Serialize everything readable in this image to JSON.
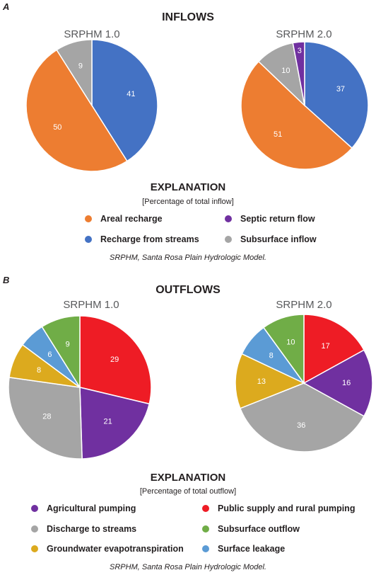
{
  "colors": {
    "orange": "#ed7d31",
    "blue": "#4472c4",
    "purple": "#7030a0",
    "gray": "#a5a5a5",
    "red": "#ee1c25",
    "green": "#70ad47",
    "gold": "#dcaa1e",
    "lightblue": "#5b9bd5"
  },
  "panel_a": {
    "letter": "A",
    "title": "INFLOWS",
    "explanation_title": "EXPLANATION",
    "explanation_subtitle": "[Percentage of total inflow]",
    "legend": [
      {
        "label": "Areal recharge",
        "color": "#ed7d31"
      },
      {
        "label": "Septic return flow",
        "color": "#7030a0"
      },
      {
        "label": "Recharge from streams",
        "color": "#4472c4"
      },
      {
        "label": "Subsurface inflow",
        "color": "#a5a5a5"
      }
    ],
    "note": "SRPHM, Santa Rosa Plain Hydrologic Model."
  },
  "panel_b": {
    "letter": "B",
    "title": "OUTFLOWS",
    "explanation_title": "EXPLANATION",
    "explanation_subtitle": "[Percentage of total outflow]",
    "legend": [
      {
        "label": "Agricultural pumping",
        "color": "#7030a0"
      },
      {
        "label": "Public supply and rural pumping",
        "color": "#ee1c25"
      },
      {
        "label": "Discharge to streams",
        "color": "#a5a5a5"
      },
      {
        "label": "Subsurface outflow",
        "color": "#70ad47"
      },
      {
        "label": "Groundwater evapotranspiration",
        "color": "#dcaa1e"
      },
      {
        "label": "Surface leakage",
        "color": "#5b9bd5"
      }
    ],
    "note": "SRPHM, Santa Rosa Plain Hydrologic Model."
  },
  "chart_data": [
    {
      "type": "pie",
      "title": "SRPHM 1.0",
      "group": "INFLOWS",
      "slices": [
        {
          "label": "Recharge from streams",
          "value": 41,
          "color": "#4472c4"
        },
        {
          "label": "Areal recharge",
          "value": 50,
          "color": "#ed7d31"
        },
        {
          "label": "Subsurface inflow",
          "value": 9,
          "color": "#a5a5a5"
        }
      ]
    },
    {
      "type": "pie",
      "title": "SRPHM 2.0",
      "group": "INFLOWS",
      "slices": [
        {
          "label": "Recharge from streams",
          "value": 37,
          "color": "#4472c4"
        },
        {
          "label": "Areal recharge",
          "value": 51,
          "color": "#ed7d31"
        },
        {
          "label": "Subsurface inflow",
          "value": 10,
          "color": "#a5a5a5"
        },
        {
          "label": "Septic return flow",
          "value": 3,
          "color": "#7030a0"
        }
      ]
    },
    {
      "type": "pie",
      "title": "SRPHM 1.0",
      "group": "OUTFLOWS",
      "slices": [
        {
          "label": "Public supply and rural pumping",
          "value": 29,
          "color": "#ee1c25"
        },
        {
          "label": "Agricultural pumping",
          "value": 21,
          "color": "#7030a0"
        },
        {
          "label": "Discharge to streams",
          "value": 28,
          "color": "#a5a5a5"
        },
        {
          "label": "Groundwater evapotranspiration",
          "value": 8,
          "color": "#dcaa1e"
        },
        {
          "label": "Surface leakage",
          "value": 6,
          "color": "#5b9bd5"
        },
        {
          "label": "Subsurface outflow",
          "value": 9,
          "color": "#70ad47"
        }
      ]
    },
    {
      "type": "pie",
      "title": "SRPHM 2.0",
      "group": "OUTFLOWS",
      "slices": [
        {
          "label": "Public supply and rural pumping",
          "value": 17,
          "color": "#ee1c25"
        },
        {
          "label": "Agricultural pumping",
          "value": 16,
          "color": "#7030a0"
        },
        {
          "label": "Discharge to streams",
          "value": 36,
          "color": "#a5a5a5"
        },
        {
          "label": "Groundwater evapotranspiration",
          "value": 13,
          "color": "#dcaa1e"
        },
        {
          "label": "Surface leakage",
          "value": 8,
          "color": "#5b9bd5"
        },
        {
          "label": "Subsurface outflow",
          "value": 10,
          "color": "#70ad47"
        }
      ]
    }
  ]
}
